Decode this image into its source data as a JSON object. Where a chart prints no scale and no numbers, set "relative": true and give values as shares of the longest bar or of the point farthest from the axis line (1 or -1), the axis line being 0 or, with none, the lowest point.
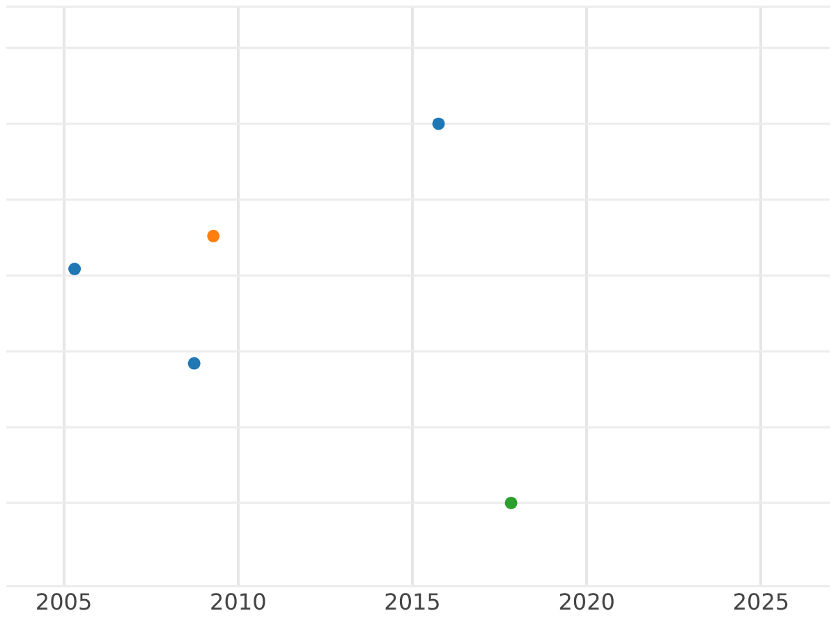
{
  "chart_data": {
    "type": "scatter",
    "relative": true,
    "marker": "circle",
    "grid": true,
    "legend": false,
    "xlim": [
      2003.35,
      2026.97
    ],
    "xticks": [
      2005,
      2010,
      2015,
      2020,
      2025
    ],
    "series": [
      {
        "color": "#1f77b4",
        "x": [
          2015.75,
          2005.31,
          2008.74
        ],
        "values": [
          1,
          0.617,
          0.368
        ]
      },
      {
        "color": "#ff7f0e",
        "x": [
          2009.29
        ],
        "values": [
          0.704
        ]
      },
      {
        "color": "#2ca02c",
        "x": [
          2017.83
        ],
        "values": [
          0
        ]
      }
    ]
  }
}
